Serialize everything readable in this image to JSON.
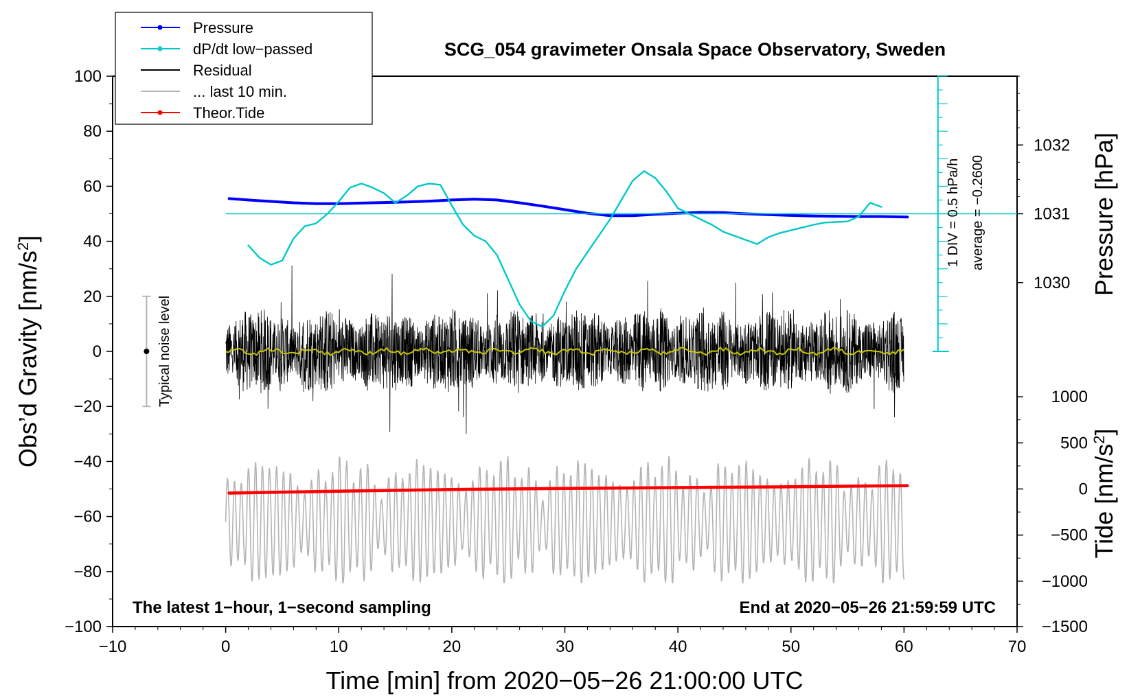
{
  "chart_data": {
    "type": "line",
    "title": "SCG_054 gravimeter Onsala Space Observatory, Sweden",
    "xlabel": "Time [min] from 2020−05−26 21:00:00 UTC",
    "ylabel_left": "Obs’d Gravity [nm/s",
    "ylabel_left_sup": "2",
    "ylabel_left_close": "]",
    "ylabel_right_pressure": "Pressure [hPa]",
    "ylabel_right_tide": "Tide [nm/s",
    "ylabel_right_tide_sup": "2",
    "ylabel_right_tide_close": "]",
    "xlim": [
      -10,
      70
    ],
    "ylim": [
      -100,
      100
    ],
    "x_ticks": [
      -10,
      0,
      10,
      20,
      30,
      40,
      50,
      60,
      70
    ],
    "x_tick_labels": [
      "−10",
      "0",
      "10",
      "20",
      "30",
      "40",
      "50",
      "60",
      "70"
    ],
    "y_ticks": [
      100,
      80,
      60,
      40,
      20,
      0,
      -20,
      -40,
      -60,
      -80,
      -100
    ],
    "y_tick_labels": [
      "100",
      "80",
      "60",
      "40",
      "20",
      "0",
      "−20",
      "−40",
      "−60",
      "−80",
      "−100"
    ],
    "pressure_axis": {
      "ticks": [
        1032,
        1031,
        1030
      ],
      "tick_labels": [
        "1032",
        "1031",
        "1030"
      ],
      "gravity_equiv": [
        75,
        50,
        25
      ]
    },
    "tide_axis": {
      "ticks": [
        1000,
        500,
        0,
        -500,
        -1000,
        -1500
      ],
      "tick_labels": [
        "1000",
        "500",
        "0",
        "−500",
        "−1000",
        "−1500"
      ],
      "gravity_equiv": [
        -16.5,
        -33.25,
        -50,
        -66.75,
        -83.5,
        -100.25
      ]
    },
    "legend": [
      {
        "label": "Pressure",
        "color": "#0000ff",
        "marker": true
      },
      {
        "label": "dP/dt low−passed",
        "color": "#00c8c8",
        "marker": true
      },
      {
        "label": "Residual",
        "color": "#000000",
        "marker": false
      },
      {
        "label": "... last 10 min.",
        "color": "#b4b4b4",
        "marker": false
      },
      {
        "label": "Theor.Tide",
        "color": "#ff0000",
        "marker": true
      }
    ],
    "annotations": {
      "bottom_left": "The latest 1−hour, 1−second sampling",
      "bottom_right": "End at 2020−05−26 21:59:59 UTC",
      "noise_label": "Typical noise level",
      "div_label": "1 DIV = 0.5 hPa/h",
      "average_label": "average = −0.2600"
    },
    "noise_bar": {
      "x": -7,
      "y_center": 0,
      "y_low": -20,
      "y_high": 20
    },
    "dpdt_scale_bar": {
      "x": 63,
      "y_top": 100,
      "y_bottom": 0,
      "y_baseline": 50
    },
    "series": [
      {
        "name": "Pressure",
        "color": "#0000ff",
        "x": [
          0.3,
          2,
          4,
          6,
          8,
          10,
          12,
          14,
          16,
          18,
          20,
          22,
          24,
          26,
          28,
          30,
          32,
          34,
          36,
          38,
          40,
          42,
          44,
          46,
          48,
          50,
          52,
          54,
          56,
          58,
          60.3
        ],
        "y": [
          55.5,
          55.0,
          54.5,
          54.0,
          53.7,
          53.7,
          53.9,
          54.1,
          54.3,
          54.6,
          55.0,
          55.3,
          55.0,
          54.0,
          52.8,
          51.5,
          50.2,
          49.3,
          49.3,
          49.8,
          50.2,
          50.5,
          50.4,
          50.0,
          49.7,
          49.4,
          49.2,
          49.1,
          49.0,
          49.0,
          48.8
        ]
      },
      {
        "name": "dP/dt low−passed",
        "color": "#00c8c8",
        "x": [
          2,
          3,
          4,
          5,
          6,
          7,
          8,
          9,
          10,
          11,
          12,
          13,
          14,
          15,
          16,
          17,
          18,
          19,
          20,
          21,
          22,
          23,
          24,
          25,
          26,
          27,
          28,
          29,
          30,
          31,
          32,
          33,
          34,
          35,
          36,
          37,
          38,
          39,
          40,
          41,
          42,
          43,
          44,
          45,
          46,
          47,
          48,
          49,
          50,
          51,
          52,
          53,
          54,
          55,
          56,
          57,
          58
        ],
        "y": [
          38.5,
          34.0,
          31.5,
          33.0,
          41.0,
          45.5,
          46.5,
          50.0,
          54.5,
          59.5,
          61.0,
          59.5,
          57.5,
          54.0,
          56.5,
          60.0,
          61.0,
          60.5,
          53.0,
          46.0,
          42.0,
          40.0,
          35.0,
          26.0,
          17.0,
          11.0,
          9.0,
          13.0,
          22.0,
          30.0,
          36.0,
          42.0,
          48.0,
          55.0,
          62.0,
          65.5,
          63.0,
          58.0,
          52.0,
          50.0,
          48.0,
          46.0,
          43.5,
          42.0,
          40.5,
          39.0,
          41.5,
          43.0,
          44.0,
          45.0,
          46.0,
          46.8,
          47.0,
          47.2,
          49.0,
          54.0,
          52.5
        ]
      },
      {
        "name": "Theor.Tide",
        "color": "#ff0000",
        "x": [
          0.3,
          10,
          20,
          30,
          40,
          50,
          60.3
        ],
        "y": [
          -51.5,
          -50.8,
          -50.2,
          -49.8,
          -49.5,
          -49.2,
          -48.8
        ]
      }
    ],
    "residual_summary": {
      "x_start": 0.0,
      "x_end": 60.0,
      "noise_envelope": [
        -30,
        34
      ],
      "mean": 0
    },
    "last10_summary": {
      "x_start": 0.0,
      "x_end": 60.0,
      "y_center": -62,
      "amplitude_range": [
        -84,
        -37
      ]
    }
  }
}
